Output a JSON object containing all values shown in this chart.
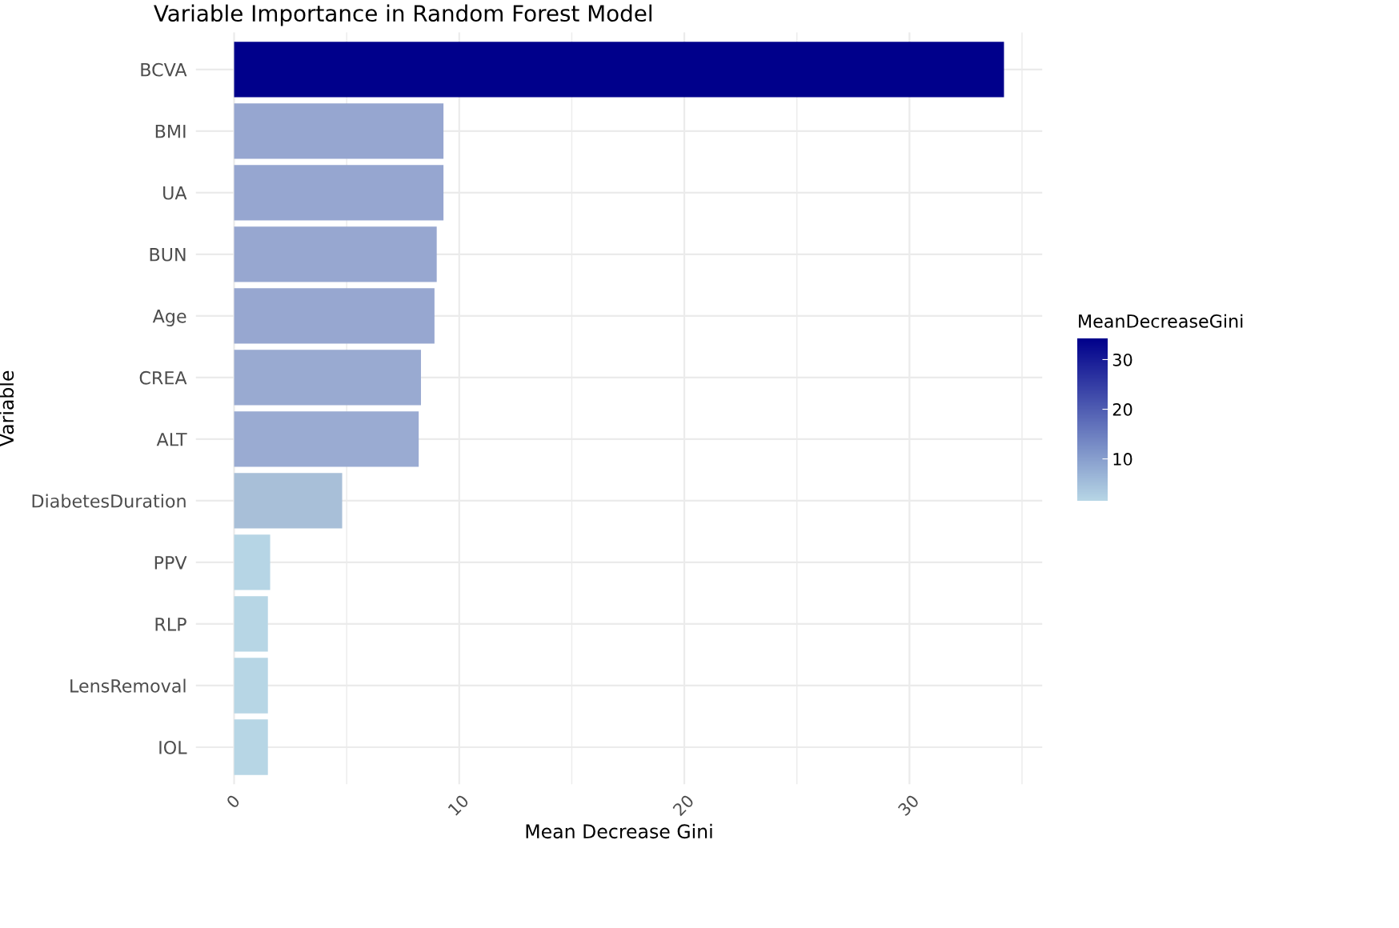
{
  "chart_data": {
    "type": "bar",
    "orientation": "horizontal",
    "title": "Variable Importance in Random Forest Model",
    "xlabel": "Mean Decrease Gini",
    "ylabel": "Variable",
    "clabel": "MeanDecreaseGini",
    "categories": [
      "BCVA",
      "BMI",
      "UA",
      "BUN",
      "Age",
      "CREA",
      "ALT",
      "DiabetesDuration",
      "PPV",
      "RLP",
      "LensRemoval",
      "IOL"
    ],
    "values": [
      34.2,
      9.3,
      9.3,
      9.0,
      8.9,
      8.3,
      8.2,
      4.8,
      1.6,
      1.5,
      1.5,
      1.5
    ],
    "colors": [
      "#00008b",
      "#96a6d0",
      "#96a6d0",
      "#97a7d0",
      "#97a7d0",
      "#99aad1",
      "#9aabd2",
      "#a8bfd8",
      "#b6d5e5",
      "#b7d6e5",
      "#b7d6e5",
      "#b7d6e5"
    ],
    "xlim": [
      -1.7,
      35.9
    ],
    "xticks": [
      0,
      10,
      20,
      30
    ],
    "clim": [
      1.5,
      34.2
    ],
    "cticks": [
      10,
      20,
      30
    ],
    "grid": true
  }
}
